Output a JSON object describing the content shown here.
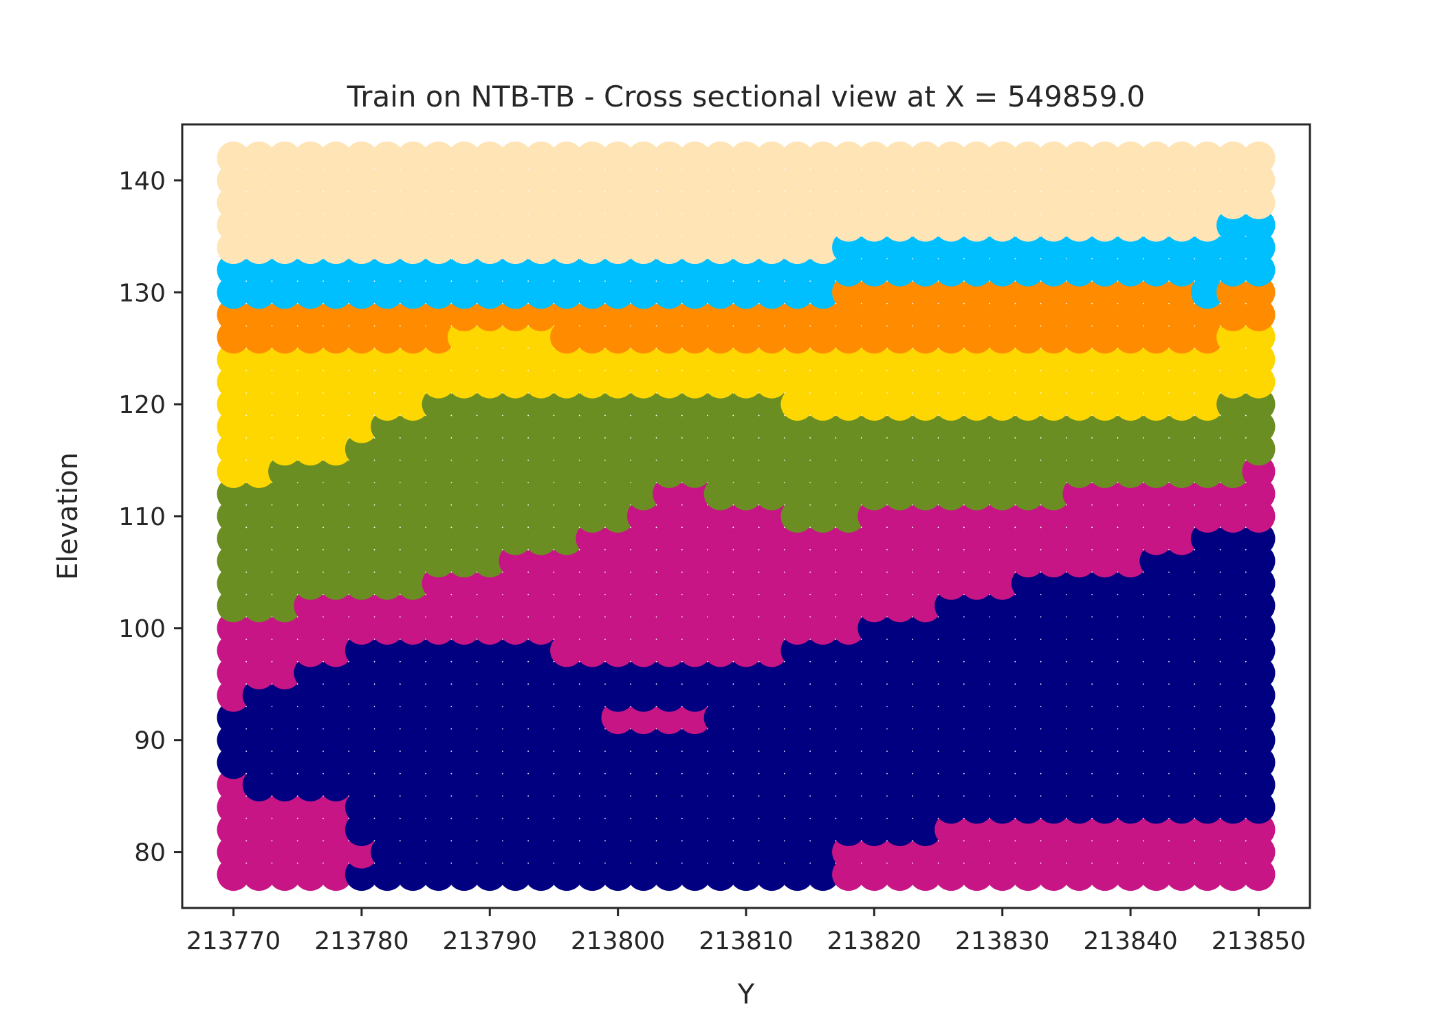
{
  "chart_data": {
    "type": "scatter",
    "title": "Train on NTB-TB - Cross sectional view at X = 549859.0",
    "xlabel": "Y",
    "ylabel": "Elevation",
    "xlim": [
      213766,
      213854
    ],
    "ylim": [
      75,
      145
    ],
    "xticks": [
      213770,
      213780,
      213790,
      213800,
      213810,
      213820,
      213830,
      213840,
      213850
    ],
    "yticks": [
      80,
      90,
      100,
      110,
      120,
      130,
      140
    ],
    "grid": false,
    "legend": "none",
    "column_x": [
      213770,
      213772,
      213774,
      213776,
      213778,
      213780,
      213782,
      213784,
      213786,
      213788,
      213790,
      213792,
      213794,
      213796,
      213798,
      213800,
      213802,
      213804,
      213806,
      213808,
      213810,
      213812,
      213814,
      213816,
      213818,
      213820,
      213822,
      213824,
      213826,
      213828,
      213830,
      213832,
      213834,
      213836,
      213838,
      213840,
      213842,
      213844,
      213846,
      213848,
      213850
    ],
    "elevation_step": 2,
    "elevation_top": 142,
    "classes": [
      {
        "id": "navy",
        "color": "#000080"
      },
      {
        "id": "magenta",
        "color": "#C71585"
      },
      {
        "id": "olive",
        "color": "#6B8E23"
      },
      {
        "id": "gold",
        "color": "#FFD700"
      },
      {
        "id": "orange",
        "color": "#FF8C00"
      },
      {
        "id": "sky",
        "color": "#00BFFF"
      },
      {
        "id": "wheat",
        "color": "#FFE4B5"
      }
    ],
    "column_layers": [
      [
        [
          86,
          1
        ],
        [
          92,
          0
        ],
        [
          100,
          1
        ],
        [
          112,
          2
        ],
        [
          124,
          3
        ],
        [
          128,
          4
        ],
        [
          132,
          5
        ],
        [
          142,
          6
        ]
      ],
      [
        [
          84,
          1
        ],
        [
          94,
          0
        ],
        [
          100,
          1
        ],
        [
          112,
          2
        ],
        [
          124,
          3
        ],
        [
          128,
          4
        ],
        [
          132,
          5
        ],
        [
          142,
          6
        ]
      ],
      [
        [
          84,
          1
        ],
        [
          94,
          0
        ],
        [
          100,
          1
        ],
        [
          114,
          2
        ],
        [
          124,
          3
        ],
        [
          128,
          4
        ],
        [
          132,
          5
        ],
        [
          142,
          6
        ]
      ],
      [
        [
          76,
          0
        ],
        [
          84,
          1
        ],
        [
          96,
          0
        ],
        [
          102,
          1
        ],
        [
          114,
          2
        ],
        [
          124,
          3
        ],
        [
          128,
          4
        ],
        [
          132,
          5
        ],
        [
          142,
          6
        ]
      ],
      [
        [
          76,
          0
        ],
        [
          84,
          1
        ],
        [
          96,
          0
        ],
        [
          102,
          1
        ],
        [
          114,
          2
        ],
        [
          124,
          3
        ],
        [
          128,
          4
        ],
        [
          132,
          5
        ],
        [
          142,
          6
        ]
      ],
      [
        [
          78,
          0
        ],
        [
          80,
          1
        ],
        [
          98,
          0
        ],
        [
          102,
          1
        ],
        [
          116,
          2
        ],
        [
          124,
          3
        ],
        [
          128,
          4
        ],
        [
          132,
          5
        ],
        [
          142,
          6
        ]
      ],
      [
        [
          98,
          0
        ],
        [
          102,
          1
        ],
        [
          118,
          2
        ],
        [
          124,
          3
        ],
        [
          128,
          4
        ],
        [
          132,
          5
        ],
        [
          142,
          6
        ]
      ],
      [
        [
          98,
          0
        ],
        [
          102,
          1
        ],
        [
          118,
          2
        ],
        [
          124,
          3
        ],
        [
          128,
          4
        ],
        [
          132,
          5
        ],
        [
          142,
          6
        ]
      ],
      [
        [
          98,
          0
        ],
        [
          104,
          1
        ],
        [
          120,
          2
        ],
        [
          124,
          3
        ],
        [
          128,
          4
        ],
        [
          132,
          5
        ],
        [
          142,
          6
        ]
      ],
      [
        [
          98,
          0
        ],
        [
          104,
          1
        ],
        [
          120,
          2
        ],
        [
          126,
          3
        ],
        [
          128,
          4
        ],
        [
          132,
          5
        ],
        [
          142,
          6
        ]
      ],
      [
        [
          98,
          0
        ],
        [
          104,
          1
        ],
        [
          120,
          2
        ],
        [
          126,
          3
        ],
        [
          128,
          4
        ],
        [
          132,
          5
        ],
        [
          142,
          6
        ]
      ],
      [
        [
          98,
          0
        ],
        [
          106,
          1
        ],
        [
          120,
          2
        ],
        [
          126,
          3
        ],
        [
          128,
          4
        ],
        [
          132,
          5
        ],
        [
          142,
          6
        ]
      ],
      [
        [
          98,
          0
        ],
        [
          106,
          1
        ],
        [
          120,
          2
        ],
        [
          126,
          3
        ],
        [
          128,
          4
        ],
        [
          132,
          5
        ],
        [
          142,
          6
        ]
      ],
      [
        [
          96,
          0
        ],
        [
          106,
          1
        ],
        [
          120,
          2
        ],
        [
          124,
          3
        ],
        [
          128,
          4
        ],
        [
          132,
          5
        ],
        [
          142,
          6
        ]
      ],
      [
        [
          96,
          0
        ],
        [
          108,
          1
        ],
        [
          120,
          2
        ],
        [
          124,
          3
        ],
        [
          128,
          4
        ],
        [
          132,
          5
        ],
        [
          142,
          6
        ]
      ],
      [
        [
          90,
          0
        ],
        [
          92,
          1
        ],
        [
          96,
          0
        ],
        [
          108,
          1
        ],
        [
          120,
          2
        ],
        [
          124,
          3
        ],
        [
          128,
          4
        ],
        [
          132,
          5
        ],
        [
          142,
          6
        ]
      ],
      [
        [
          90,
          0
        ],
        [
          92,
          1
        ],
        [
          96,
          0
        ],
        [
          110,
          1
        ],
        [
          120,
          2
        ],
        [
          124,
          3
        ],
        [
          128,
          4
        ],
        [
          132,
          5
        ],
        [
          142,
          6
        ]
      ],
      [
        [
          90,
          0
        ],
        [
          92,
          1
        ],
        [
          96,
          0
        ],
        [
          112,
          1
        ],
        [
          120,
          2
        ],
        [
          124,
          3
        ],
        [
          128,
          4
        ],
        [
          132,
          5
        ],
        [
          142,
          6
        ]
      ],
      [
        [
          90,
          0
        ],
        [
          92,
          1
        ],
        [
          96,
          0
        ],
        [
          112,
          1
        ],
        [
          120,
          2
        ],
        [
          124,
          3
        ],
        [
          128,
          4
        ],
        [
          132,
          5
        ],
        [
          142,
          6
        ]
      ],
      [
        [
          96,
          0
        ],
        [
          110,
          1
        ],
        [
          120,
          2
        ],
        [
          124,
          3
        ],
        [
          128,
          4
        ],
        [
          132,
          5
        ],
        [
          142,
          6
        ]
      ],
      [
        [
          96,
          0
        ],
        [
          110,
          1
        ],
        [
          120,
          2
        ],
        [
          124,
          3
        ],
        [
          128,
          4
        ],
        [
          132,
          5
        ],
        [
          142,
          6
        ]
      ],
      [
        [
          96,
          0
        ],
        [
          110,
          1
        ],
        [
          120,
          2
        ],
        [
          124,
          3
        ],
        [
          128,
          4
        ],
        [
          132,
          5
        ],
        [
          142,
          6
        ]
      ],
      [
        [
          98,
          0
        ],
        [
          108,
          1
        ],
        [
          118,
          2
        ],
        [
          124,
          3
        ],
        [
          128,
          4
        ],
        [
          132,
          5
        ],
        [
          142,
          6
        ]
      ],
      [
        [
          98,
          0
        ],
        [
          108,
          1
        ],
        [
          118,
          2
        ],
        [
          124,
          3
        ],
        [
          128,
          4
        ],
        [
          132,
          5
        ],
        [
          142,
          6
        ]
      ],
      [
        [
          80,
          1
        ],
        [
          98,
          0
        ],
        [
          108,
          1
        ],
        [
          118,
          2
        ],
        [
          124,
          3
        ],
        [
          130,
          4
        ],
        [
          134,
          5
        ],
        [
          142,
          6
        ]
      ],
      [
        [
          80,
          1
        ],
        [
          100,
          0
        ],
        [
          110,
          1
        ],
        [
          118,
          2
        ],
        [
          124,
          3
        ],
        [
          130,
          4
        ],
        [
          134,
          5
        ],
        [
          142,
          6
        ]
      ],
      [
        [
          80,
          1
        ],
        [
          100,
          0
        ],
        [
          110,
          1
        ],
        [
          118,
          2
        ],
        [
          124,
          3
        ],
        [
          130,
          4
        ],
        [
          134,
          5
        ],
        [
          142,
          6
        ]
      ],
      [
        [
          80,
          1
        ],
        [
          100,
          0
        ],
        [
          110,
          1
        ],
        [
          118,
          2
        ],
        [
          124,
          3
        ],
        [
          130,
          4
        ],
        [
          134,
          5
        ],
        [
          142,
          6
        ]
      ],
      [
        [
          82,
          1
        ],
        [
          102,
          0
        ],
        [
          110,
          1
        ],
        [
          118,
          2
        ],
        [
          124,
          3
        ],
        [
          130,
          4
        ],
        [
          134,
          5
        ],
        [
          142,
          6
        ]
      ],
      [
        [
          82,
          1
        ],
        [
          102,
          0
        ],
        [
          110,
          1
        ],
        [
          118,
          2
        ],
        [
          124,
          3
        ],
        [
          130,
          4
        ],
        [
          134,
          5
        ],
        [
          142,
          6
        ]
      ],
      [
        [
          82,
          1
        ],
        [
          102,
          0
        ],
        [
          110,
          1
        ],
        [
          118,
          2
        ],
        [
          124,
          3
        ],
        [
          130,
          4
        ],
        [
          134,
          5
        ],
        [
          142,
          6
        ]
      ],
      [
        [
          82,
          1
        ],
        [
          104,
          0
        ],
        [
          110,
          1
        ],
        [
          118,
          2
        ],
        [
          124,
          3
        ],
        [
          130,
          4
        ],
        [
          134,
          5
        ],
        [
          142,
          6
        ]
      ],
      [
        [
          82,
          1
        ],
        [
          104,
          0
        ],
        [
          110,
          1
        ],
        [
          118,
          2
        ],
        [
          124,
          3
        ],
        [
          130,
          4
        ],
        [
          134,
          5
        ],
        [
          142,
          6
        ]
      ],
      [
        [
          82,
          1
        ],
        [
          104,
          0
        ],
        [
          112,
          1
        ],
        [
          118,
          2
        ],
        [
          124,
          3
        ],
        [
          130,
          4
        ],
        [
          134,
          5
        ],
        [
          142,
          6
        ]
      ],
      [
        [
          82,
          1
        ],
        [
          104,
          0
        ],
        [
          112,
          1
        ],
        [
          118,
          2
        ],
        [
          124,
          3
        ],
        [
          130,
          4
        ],
        [
          134,
          5
        ],
        [
          142,
          6
        ]
      ],
      [
        [
          82,
          1
        ],
        [
          104,
          0
        ],
        [
          112,
          1
        ],
        [
          118,
          2
        ],
        [
          124,
          3
        ],
        [
          130,
          4
        ],
        [
          134,
          5
        ],
        [
          142,
          6
        ]
      ],
      [
        [
          82,
          1
        ],
        [
          106,
          0
        ],
        [
          112,
          1
        ],
        [
          118,
          2
        ],
        [
          124,
          3
        ],
        [
          130,
          4
        ],
        [
          134,
          5
        ],
        [
          142,
          6
        ]
      ],
      [
        [
          82,
          1
        ],
        [
          106,
          0
        ],
        [
          112,
          1
        ],
        [
          118,
          2
        ],
        [
          124,
          3
        ],
        [
          130,
          4
        ],
        [
          134,
          5
        ],
        [
          142,
          6
        ]
      ],
      [
        [
          82,
          1
        ],
        [
          108,
          0
        ],
        [
          112,
          1
        ],
        [
          118,
          2
        ],
        [
          124,
          3
        ],
        [
          128,
          4
        ],
        [
          134,
          5
        ],
        [
          142,
          6
        ]
      ],
      [
        [
          82,
          1
        ],
        [
          108,
          0
        ],
        [
          112,
          1
        ],
        [
          120,
          2
        ],
        [
          126,
          3
        ],
        [
          130,
          4
        ],
        [
          136,
          5
        ],
        [
          142,
          6
        ]
      ],
      [
        [
          82,
          1
        ],
        [
          108,
          0
        ],
        [
          114,
          1
        ],
        [
          120,
          2
        ],
        [
          126,
          3
        ],
        [
          130,
          4
        ],
        [
          136,
          5
        ],
        [
          142,
          6
        ]
      ]
    ]
  }
}
